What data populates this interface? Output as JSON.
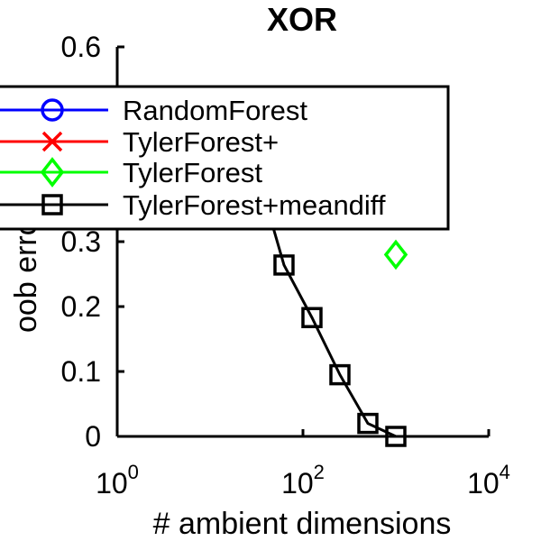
{
  "chart_data": {
    "type": "line",
    "title": "XOR",
    "xlabel": "# ambient dimensions",
    "ylabel": "oob error",
    "x_scale": "log",
    "xlim": [
      1,
      10000
    ],
    "ylim": [
      0,
      0.6
    ],
    "x_ticks": [
      {
        "value": 1,
        "base": "10",
        "exp": "0"
      },
      {
        "value": 100,
        "base": "10",
        "exp": "2"
      },
      {
        "value": 10000,
        "base": "10",
        "exp": "4"
      }
    ],
    "y_ticks": [
      {
        "value": 0,
        "label": "0"
      },
      {
        "value": 0.1,
        "label": "0.1"
      },
      {
        "value": 0.2,
        "label": "0.2"
      },
      {
        "value": 0.3,
        "label": "0.3"
      },
      {
        "value": 0.6,
        "label": "0.6"
      }
    ],
    "legend_position": "top-left",
    "series": [
      {
        "name": "RandomForest",
        "color": "#0000ff",
        "marker": "circle",
        "x": [],
        "y": []
      },
      {
        "name": "TylerForest+",
        "color": "#ff0000",
        "marker": "x",
        "x": [],
        "y": []
      },
      {
        "name": "TylerForest",
        "color": "#00ff00",
        "marker": "diamond",
        "x": [
          1000
        ],
        "y": [
          0.28
        ]
      },
      {
        "name": "TylerForest+meandiff",
        "color": "#000000",
        "marker": "square",
        "x": [
          40,
          62.5,
          125,
          250,
          500,
          1000
        ],
        "y": [
          0.36,
          0.264,
          0.183,
          0.095,
          0.02,
          0.0
        ]
      }
    ]
  }
}
